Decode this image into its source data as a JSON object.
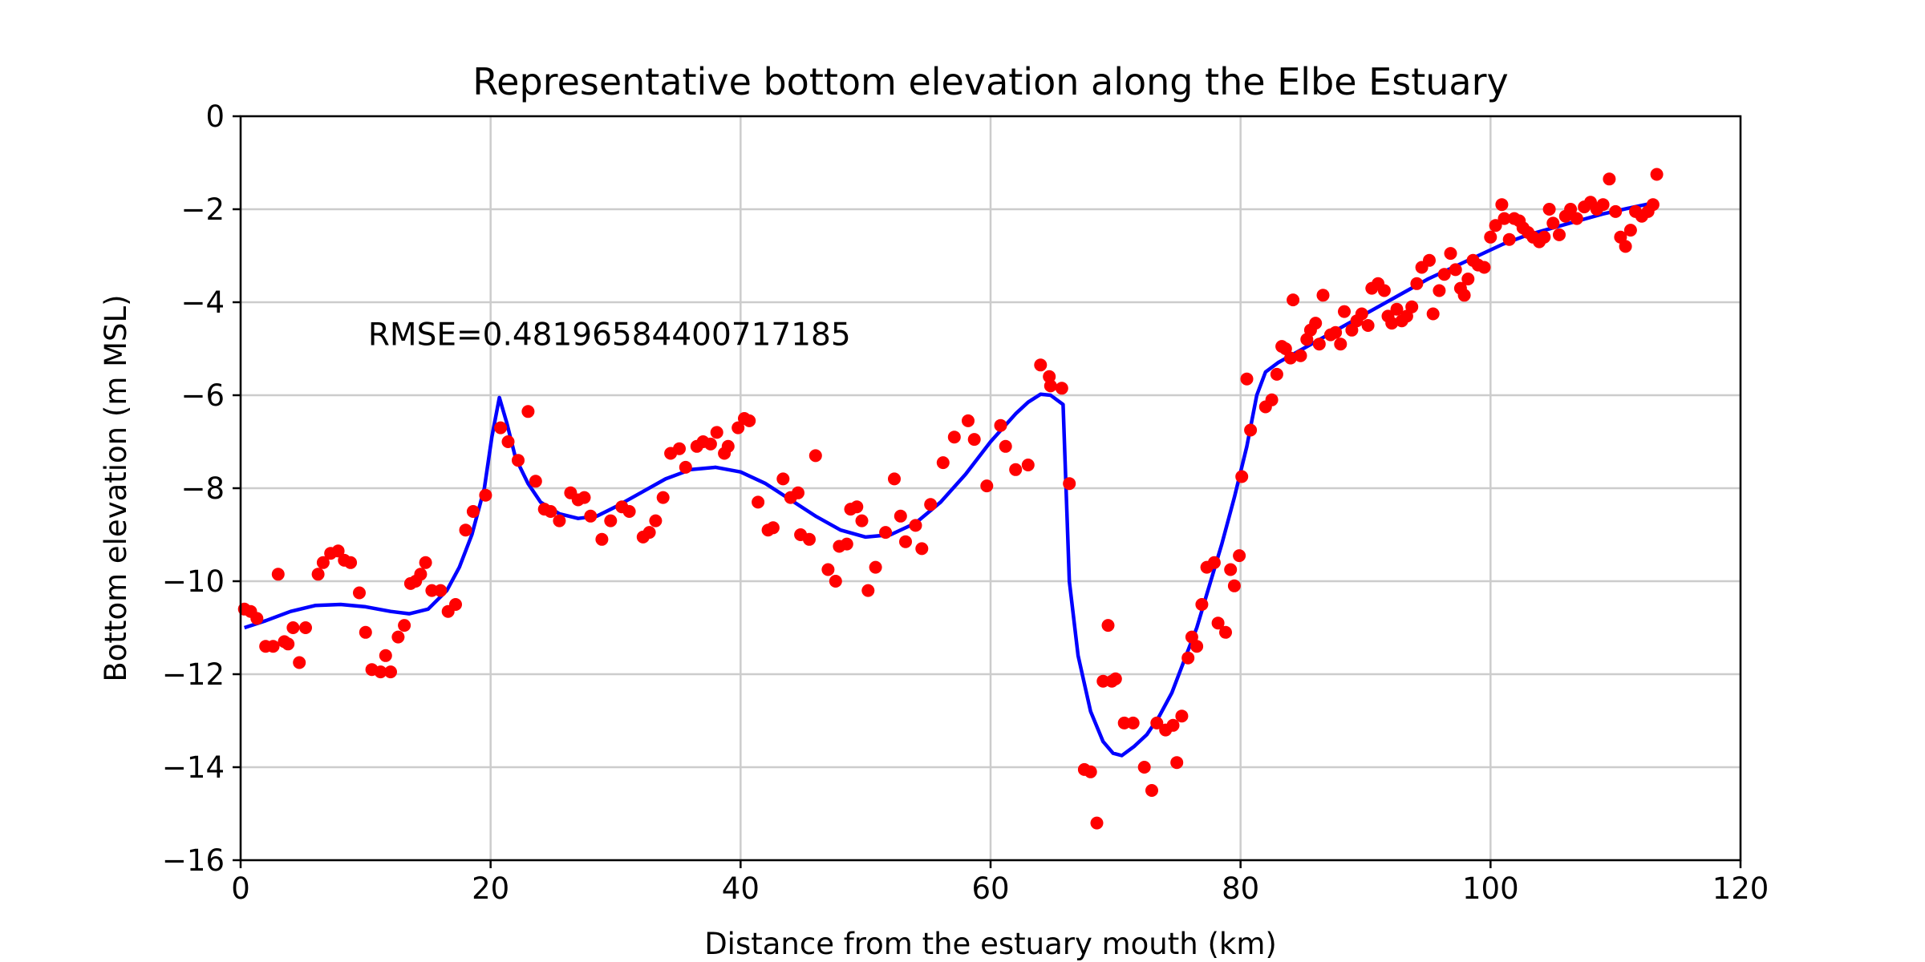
{
  "chart_data": {
    "type": "scatter",
    "title": "Representative bottom elevation along the Elbe Estuary",
    "xlabel": "Distance from the estuary mouth (km)",
    "ylabel": "Bottom elevation (m MSL)",
    "xlim": [
      0,
      120
    ],
    "ylim": [
      -16,
      0
    ],
    "xticks": [
      0,
      20,
      40,
      60,
      80,
      100,
      120
    ],
    "yticks": [
      0,
      -2,
      -4,
      -6,
      -8,
      -10,
      -12,
      -14,
      -16
    ],
    "xtick_labels": [
      "0",
      "20",
      "40",
      "60",
      "80",
      "100",
      "120"
    ],
    "ytick_labels": [
      "0",
      "−2",
      "−4",
      "−6",
      "−8",
      "−10",
      "−12",
      "−14",
      "−16"
    ],
    "grid": true,
    "annotation": {
      "text": "RMSE=0.48196584400717185",
      "x": 10,
      "y": -4.8
    },
    "series": [
      {
        "kind": "scatter",
        "color": "#ff0000",
        "points": [
          [
            0.3,
            -10.6
          ],
          [
            0.8,
            -10.65
          ],
          [
            1.3,
            -10.8
          ],
          [
            2.0,
            -11.4
          ],
          [
            2.6,
            -11.4
          ],
          [
            3.0,
            -9.85
          ],
          [
            3.5,
            -11.3
          ],
          [
            3.8,
            -11.35
          ],
          [
            4.2,
            -11.0
          ],
          [
            4.7,
            -11.75
          ],
          [
            5.2,
            -11.0
          ],
          [
            6.2,
            -9.85
          ],
          [
            6.6,
            -9.6
          ],
          [
            7.2,
            -9.4
          ],
          [
            7.8,
            -9.35
          ],
          [
            8.3,
            -9.55
          ],
          [
            8.8,
            -9.6
          ],
          [
            9.5,
            -10.25
          ],
          [
            10.0,
            -11.1
          ],
          [
            10.5,
            -11.9
          ],
          [
            11.2,
            -11.95
          ],
          [
            11.6,
            -11.6
          ],
          [
            12.0,
            -11.95
          ],
          [
            12.6,
            -11.2
          ],
          [
            13.1,
            -10.95
          ],
          [
            13.6,
            -10.05
          ],
          [
            14.0,
            -10.0
          ],
          [
            14.4,
            -9.85
          ],
          [
            14.8,
            -9.6
          ],
          [
            15.3,
            -10.2
          ],
          [
            16.0,
            -10.2
          ],
          [
            16.6,
            -10.65
          ],
          [
            17.2,
            -10.5
          ],
          [
            18.0,
            -8.9
          ],
          [
            18.6,
            -8.5
          ],
          [
            19.6,
            -8.15
          ],
          [
            20.8,
            -6.7
          ],
          [
            21.4,
            -7.0
          ],
          [
            22.2,
            -7.4
          ],
          [
            23.0,
            -6.35
          ],
          [
            23.6,
            -7.85
          ],
          [
            24.3,
            -8.45
          ],
          [
            24.8,
            -8.5
          ],
          [
            25.5,
            -8.7
          ],
          [
            26.4,
            -8.1
          ],
          [
            27.0,
            -8.25
          ],
          [
            27.5,
            -8.2
          ],
          [
            28.0,
            -8.6
          ],
          [
            28.9,
            -9.1
          ],
          [
            29.6,
            -8.7
          ],
          [
            30.5,
            -8.4
          ],
          [
            31.1,
            -8.5
          ],
          [
            32.2,
            -9.05
          ],
          [
            32.7,
            -8.95
          ],
          [
            33.2,
            -8.7
          ],
          [
            33.8,
            -8.2
          ],
          [
            34.4,
            -7.25
          ],
          [
            35.1,
            -7.15
          ],
          [
            35.6,
            -7.55
          ],
          [
            36.5,
            -7.1
          ],
          [
            37.0,
            -7.0
          ],
          [
            37.6,
            -7.05
          ],
          [
            38.1,
            -6.8
          ],
          [
            38.7,
            -7.25
          ],
          [
            39.0,
            -7.1
          ],
          [
            39.8,
            -6.7
          ],
          [
            40.3,
            -6.5
          ],
          [
            40.7,
            -6.55
          ],
          [
            41.4,
            -8.3
          ],
          [
            42.2,
            -8.9
          ],
          [
            42.6,
            -8.85
          ],
          [
            43.4,
            -7.8
          ],
          [
            44.0,
            -8.2
          ],
          [
            44.6,
            -8.1
          ],
          [
            44.8,
            -9.0
          ],
          [
            45.5,
            -9.1
          ],
          [
            46.0,
            -7.3
          ],
          [
            47.0,
            -9.75
          ],
          [
            47.6,
            -10.0
          ],
          [
            47.9,
            -9.25
          ],
          [
            48.5,
            -9.2
          ],
          [
            48.8,
            -8.45
          ],
          [
            49.3,
            -8.4
          ],
          [
            49.7,
            -8.7
          ],
          [
            50.2,
            -10.2
          ],
          [
            50.8,
            -9.7
          ],
          [
            51.6,
            -8.95
          ],
          [
            52.3,
            -7.8
          ],
          [
            52.8,
            -8.6
          ],
          [
            53.2,
            -9.15
          ],
          [
            54.0,
            -8.8
          ],
          [
            54.5,
            -9.3
          ],
          [
            55.2,
            -8.35
          ],
          [
            56.2,
            -7.45
          ],
          [
            57.1,
            -6.9
          ],
          [
            58.2,
            -6.55
          ],
          [
            58.7,
            -6.95
          ],
          [
            59.7,
            -7.95
          ],
          [
            60.8,
            -6.65
          ],
          [
            61.2,
            -7.1
          ],
          [
            62.0,
            -7.6
          ],
          [
            63.0,
            -7.5
          ],
          [
            64.0,
            -5.35
          ],
          [
            64.7,
            -5.6
          ],
          [
            64.8,
            -5.8
          ],
          [
            65.7,
            -5.85
          ],
          [
            66.3,
            -7.9
          ],
          [
            67.5,
            -14.05
          ],
          [
            68.0,
            -14.1
          ],
          [
            68.5,
            -15.2
          ],
          [
            69.0,
            -12.15
          ],
          [
            69.4,
            -10.95
          ],
          [
            69.7,
            -12.15
          ],
          [
            70.0,
            -12.1
          ],
          [
            70.7,
            -13.05
          ],
          [
            71.4,
            -13.05
          ],
          [
            72.3,
            -14.0
          ],
          [
            72.9,
            -14.5
          ],
          [
            73.3,
            -13.05
          ],
          [
            74.0,
            -13.2
          ],
          [
            74.6,
            -13.1
          ],
          [
            74.9,
            -13.9
          ],
          [
            75.3,
            -12.9
          ],
          [
            75.8,
            -11.65
          ],
          [
            76.1,
            -11.2
          ],
          [
            76.5,
            -11.4
          ],
          [
            76.9,
            -10.5
          ],
          [
            77.3,
            -9.7
          ],
          [
            77.9,
            -9.6
          ],
          [
            78.2,
            -10.9
          ],
          [
            78.8,
            -11.1
          ],
          [
            79.2,
            -9.75
          ],
          [
            79.5,
            -10.1
          ],
          [
            79.9,
            -9.45
          ],
          [
            80.1,
            -7.75
          ],
          [
            80.5,
            -5.65
          ],
          [
            80.8,
            -6.75
          ],
          [
            82.0,
            -6.25
          ],
          [
            82.5,
            -6.1
          ],
          [
            82.9,
            -5.55
          ],
          [
            83.3,
            -4.95
          ],
          [
            83.6,
            -5.0
          ],
          [
            84.0,
            -5.2
          ],
          [
            84.2,
            -3.95
          ],
          [
            84.8,
            -5.15
          ],
          [
            85.3,
            -4.8
          ],
          [
            85.6,
            -4.6
          ],
          [
            86.0,
            -4.45
          ],
          [
            86.3,
            -4.9
          ],
          [
            86.6,
            -3.85
          ],
          [
            87.2,
            -4.7
          ],
          [
            87.6,
            -4.65
          ],
          [
            88.0,
            -4.9
          ],
          [
            88.3,
            -4.2
          ],
          [
            88.9,
            -4.6
          ],
          [
            89.3,
            -4.4
          ],
          [
            89.7,
            -4.25
          ],
          [
            90.2,
            -4.5
          ],
          [
            90.5,
            -3.7
          ],
          [
            91.0,
            -3.6
          ],
          [
            91.5,
            -3.75
          ],
          [
            91.8,
            -4.3
          ],
          [
            92.1,
            -4.45
          ],
          [
            92.5,
            -4.15
          ],
          [
            92.9,
            -4.4
          ],
          [
            93.3,
            -4.3
          ],
          [
            93.7,
            -4.1
          ],
          [
            94.1,
            -3.6
          ],
          [
            94.5,
            -3.25
          ],
          [
            95.1,
            -3.1
          ],
          [
            95.4,
            -4.25
          ],
          [
            95.9,
            -3.75
          ],
          [
            96.3,
            -3.4
          ],
          [
            96.8,
            -2.95
          ],
          [
            97.2,
            -3.3
          ],
          [
            97.6,
            -3.7
          ],
          [
            97.9,
            -3.85
          ],
          [
            98.2,
            -3.5
          ],
          [
            98.6,
            -3.1
          ],
          [
            99.0,
            -3.2
          ],
          [
            99.5,
            -3.25
          ],
          [
            100.0,
            -2.6
          ],
          [
            100.4,
            -2.35
          ],
          [
            100.9,
            -1.9
          ],
          [
            101.1,
            -2.2
          ],
          [
            101.5,
            -2.65
          ],
          [
            101.9,
            -2.2
          ],
          [
            102.3,
            -2.25
          ],
          [
            102.6,
            -2.4
          ],
          [
            103.0,
            -2.5
          ],
          [
            103.4,
            -2.6
          ],
          [
            103.9,
            -2.7
          ],
          [
            104.3,
            -2.6
          ],
          [
            104.7,
            -2.0
          ],
          [
            105.0,
            -2.3
          ],
          [
            105.5,
            -2.55
          ],
          [
            106.0,
            -2.15
          ],
          [
            106.4,
            -2.0
          ],
          [
            106.9,
            -2.2
          ],
          [
            107.5,
            -1.95
          ],
          [
            108.0,
            -1.85
          ],
          [
            108.5,
            -2.0
          ],
          [
            109.0,
            -1.9
          ],
          [
            109.5,
            -1.35
          ],
          [
            110.0,
            -2.05
          ],
          [
            110.4,
            -2.6
          ],
          [
            110.8,
            -2.8
          ],
          [
            111.2,
            -2.45
          ],
          [
            111.6,
            -2.05
          ],
          [
            112.1,
            -2.15
          ],
          [
            112.6,
            -2.05
          ],
          [
            113.0,
            -1.9
          ],
          [
            113.3,
            -1.25
          ]
        ]
      },
      {
        "kind": "line",
        "color": "#0000ff",
        "points": [
          [
            0.3,
            -11.0
          ],
          [
            2.0,
            -10.85
          ],
          [
            4.0,
            -10.65
          ],
          [
            6.0,
            -10.52
          ],
          [
            8.0,
            -10.5
          ],
          [
            10.0,
            -10.55
          ],
          [
            12.0,
            -10.65
          ],
          [
            13.5,
            -10.7
          ],
          [
            15.0,
            -10.6
          ],
          [
            16.5,
            -10.2
          ],
          [
            17.5,
            -9.7
          ],
          [
            18.5,
            -9.0
          ],
          [
            19.5,
            -8.0
          ],
          [
            20.1,
            -6.9
          ],
          [
            20.7,
            -6.05
          ],
          [
            21.3,
            -6.6
          ],
          [
            22.0,
            -7.35
          ],
          [
            23.0,
            -7.9
          ],
          [
            24.0,
            -8.3
          ],
          [
            25.5,
            -8.55
          ],
          [
            27.0,
            -8.65
          ],
          [
            28.5,
            -8.6
          ],
          [
            30.0,
            -8.4
          ],
          [
            32.0,
            -8.1
          ],
          [
            34.0,
            -7.8
          ],
          [
            36.0,
            -7.6
          ],
          [
            38.0,
            -7.55
          ],
          [
            40.0,
            -7.65
          ],
          [
            42.0,
            -7.9
          ],
          [
            44.0,
            -8.25
          ],
          [
            46.0,
            -8.6
          ],
          [
            48.0,
            -8.9
          ],
          [
            50.0,
            -9.05
          ],
          [
            52.0,
            -9.0
          ],
          [
            54.0,
            -8.75
          ],
          [
            56.0,
            -8.3
          ],
          [
            58.0,
            -7.7
          ],
          [
            60.0,
            -7.0
          ],
          [
            62.0,
            -6.4
          ],
          [
            63.0,
            -6.15
          ],
          [
            64.0,
            -5.98
          ],
          [
            64.8,
            -6.0
          ],
          [
            65.8,
            -6.2
          ],
          [
            66.3,
            -10.0
          ],
          [
            67.0,
            -11.6
          ],
          [
            68.0,
            -12.8
          ],
          [
            69.0,
            -13.45
          ],
          [
            69.8,
            -13.7
          ],
          [
            70.5,
            -13.75
          ],
          [
            71.5,
            -13.55
          ],
          [
            72.5,
            -13.3
          ],
          [
            73.5,
            -12.9
          ],
          [
            74.5,
            -12.4
          ],
          [
            75.5,
            -11.7
          ],
          [
            76.5,
            -11.0
          ],
          [
            77.5,
            -10.1
          ],
          [
            78.5,
            -9.2
          ],
          [
            79.5,
            -8.2
          ],
          [
            80.5,
            -7.1
          ],
          [
            81.3,
            -6.0
          ],
          [
            82.0,
            -5.5
          ],
          [
            83.0,
            -5.3
          ],
          [
            85.0,
            -5.0
          ],
          [
            87.0,
            -4.7
          ],
          [
            89.0,
            -4.4
          ],
          [
            91.0,
            -4.1
          ],
          [
            93.0,
            -3.8
          ],
          [
            95.0,
            -3.5
          ],
          [
            97.0,
            -3.25
          ],
          [
            99.0,
            -3.0
          ],
          [
            101.0,
            -2.75
          ],
          [
            103.0,
            -2.55
          ],
          [
            105.0,
            -2.4
          ],
          [
            107.0,
            -2.25
          ],
          [
            109.0,
            -2.1
          ],
          [
            111.0,
            -1.98
          ],
          [
            113.3,
            -1.85
          ]
        ]
      }
    ]
  }
}
